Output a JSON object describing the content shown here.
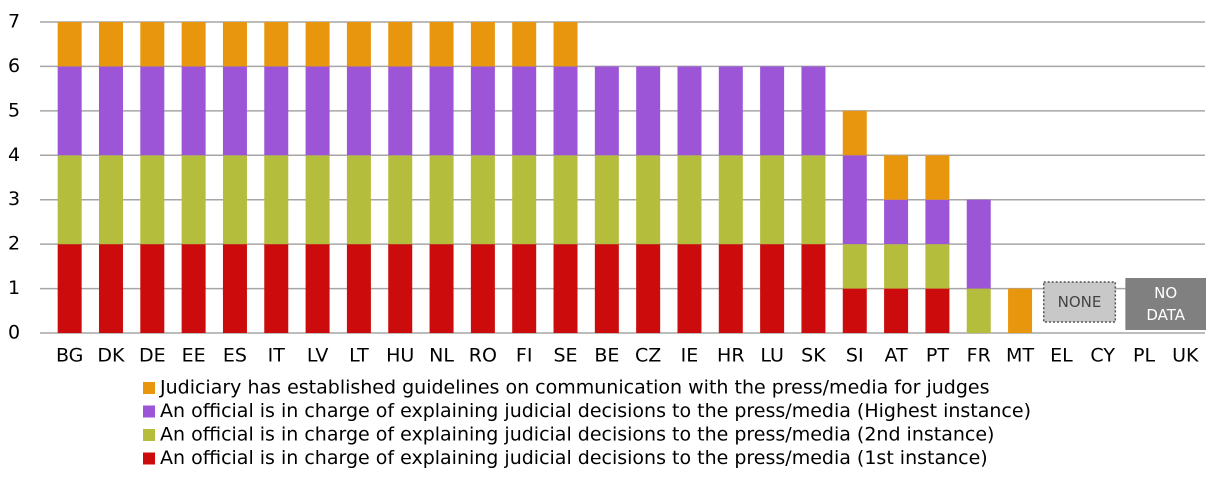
{
  "chart_data": {
    "type": "stacked_bar",
    "categories": [
      "BG",
      "DK",
      "DE",
      "EE",
      "ES",
      "IT",
      "LV",
      "LT",
      "HU",
      "NL",
      "RO",
      "FI",
      "SE",
      "BE",
      "CZ",
      "IE",
      "HR",
      "LU",
      "SK",
      "SI",
      "AT",
      "PT",
      "FR",
      "MT",
      "EL",
      "CY",
      "PL",
      "UK"
    ],
    "series": [
      {
        "name": "An official is in charge of explaining judicial decisions to the press/media (1st instance)",
        "color": "#cc0c0c",
        "values": [
          2,
          2,
          2,
          2,
          2,
          2,
          2,
          2,
          2,
          2,
          2,
          2,
          2,
          2,
          2,
          2,
          2,
          2,
          2,
          1,
          1,
          1,
          0,
          0,
          0,
          0,
          0,
          0
        ]
      },
      {
        "name": "An official is in charge of explaining judicial decisions to the press/media (2nd instance)",
        "color": "#b5bd3c",
        "values": [
          2,
          2,
          2,
          2,
          2,
          2,
          2,
          2,
          2,
          2,
          2,
          2,
          2,
          2,
          2,
          2,
          2,
          2,
          2,
          1,
          1,
          1,
          1,
          0,
          0,
          0,
          0,
          0
        ]
      },
      {
        "name": "An official is in charge of explaining judicial decisions to the press/media (Highest instance)",
        "color": "#9b55d6",
        "values": [
          2,
          2,
          2,
          2,
          2,
          2,
          2,
          2,
          2,
          2,
          2,
          2,
          2,
          2,
          2,
          2,
          2,
          2,
          2,
          2,
          1,
          1,
          2,
          0,
          0,
          0,
          0,
          0
        ]
      },
      {
        "name": "Judiciary has established guidelines on communication with the press/media for judges",
        "color": "#e8960e",
        "values": [
          1,
          1,
          1,
          1,
          1,
          1,
          1,
          1,
          1,
          1,
          1,
          1,
          1,
          0,
          0,
          0,
          0,
          0,
          0,
          1,
          1,
          1,
          0,
          1,
          0,
          0,
          0,
          0
        ]
      }
    ],
    "annotations": [
      {
        "lines": [
          "NONE"
        ],
        "from": "EL",
        "to": "CY",
        "color": "#c8c8c8"
      },
      {
        "lines": [
          "NO",
          "DATA"
        ],
        "from": "PL",
        "to": "UK",
        "color": "#808080"
      }
    ],
    "ylim": [
      0,
      7
    ],
    "yticks": [
      0,
      1,
      2,
      3,
      4,
      5,
      6,
      7
    ],
    "grid": true
  }
}
